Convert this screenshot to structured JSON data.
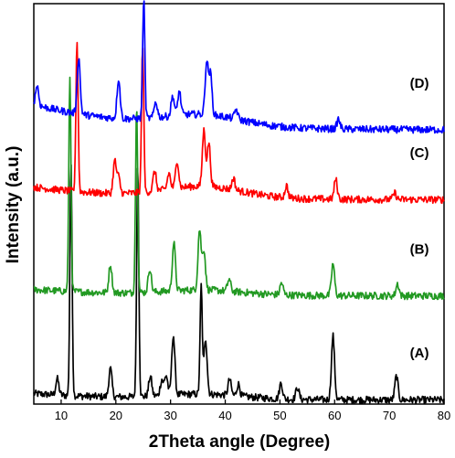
{
  "chart_data": {
    "type": "line",
    "xlabel": "2Theta angle (Degree)",
    "ylabel": "Intensity (a.u.)",
    "xlim": [
      5,
      80
    ],
    "x_ticks": [
      "10",
      "20",
      "30",
      "40",
      "50",
      "60",
      "70",
      "80"
    ],
    "y_ticks_shown": false,
    "series": [
      {
        "name": "(A)",
        "color": "#000000",
        "offset": 0.5,
        "peaks": [
          [
            9.3,
            2
          ],
          [
            11.8,
            29
          ],
          [
            19.0,
            3.5
          ],
          [
            24.0,
            29
          ],
          [
            26.3,
            2.5
          ],
          [
            28.4,
            2
          ],
          [
            29.2,
            2.5
          ],
          [
            30.5,
            7.5
          ],
          [
            35.6,
            13.5
          ],
          [
            36.4,
            7
          ],
          [
            40.8,
            2
          ],
          [
            42.4,
            1.5
          ],
          [
            50.2,
            2
          ],
          [
            53.2,
            1.5
          ],
          [
            59.7,
            8
          ],
          [
            71.3,
            3
          ]
        ],
        "label": "(A)"
      },
      {
        "name": "(B)",
        "color": "#229922",
        "offset": 13.5,
        "peaks": [
          [
            11.6,
            27
          ],
          [
            19.0,
            3.5
          ],
          [
            23.8,
            23.5
          ],
          [
            26.2,
            3
          ],
          [
            30.6,
            6
          ],
          [
            35.3,
            7.5
          ],
          [
            36.1,
            5
          ],
          [
            40.7,
            1.5
          ],
          [
            50.3,
            1.5
          ],
          [
            59.7,
            4
          ],
          [
            71.5,
            1.5
          ]
        ],
        "label": "(B)"
      },
      {
        "name": "(C)",
        "color": "#ff0000",
        "offset": 25.5,
        "peaks": [
          [
            12.9,
            19
          ],
          [
            19.8,
            4
          ],
          [
            20.5,
            2
          ],
          [
            24.9,
            18.5
          ],
          [
            27.1,
            2.5
          ],
          [
            29.7,
            2
          ],
          [
            31.2,
            3.5
          ],
          [
            36.1,
            7
          ],
          [
            37.0,
            5.5
          ],
          [
            41.5,
            1.5
          ],
          [
            51.2,
            1.5
          ],
          [
            60.2,
            2.5
          ],
          [
            71.0,
            0.8
          ]
        ],
        "label": "(C)"
      },
      {
        "name": "(D)",
        "color": "#0000ff",
        "offset": 34.2,
        "peaks": [
          [
            5.6,
            2.5
          ],
          [
            13.2,
            7
          ],
          [
            20.5,
            5
          ],
          [
            25.1,
            15
          ],
          [
            27.3,
            2
          ],
          [
            30.4,
            2.5
          ],
          [
            31.6,
            3
          ],
          [
            36.6,
            6.5
          ],
          [
            37.3,
            5
          ],
          [
            42.0,
            1.2
          ],
          [
            60.7,
            1.2
          ]
        ],
        "label": "(D)"
      }
    ]
  }
}
